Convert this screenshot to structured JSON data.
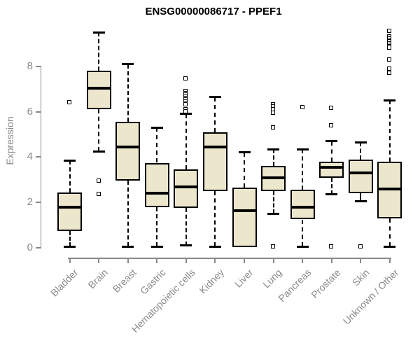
{
  "chart_data": {
    "type": "boxplot",
    "title": "ENSG00000086717 - PPEF1",
    "ylabel": "Expression",
    "xlabel": "",
    "y_ticks": [
      0,
      2,
      4,
      6,
      8
    ],
    "ylim": [
      0,
      9.8
    ],
    "grid": false,
    "legend": "none",
    "categories": [
      "Bladder",
      "Brain",
      "Breast",
      "Gastric",
      "Hematopoietic cells",
      "Kidney",
      "Liver",
      "Lung",
      "Pancreas",
      "Prostate",
      "Skin",
      "Unknown / Other"
    ],
    "series": [
      {
        "name": "Bladder",
        "whisker_low": 0.05,
        "q1": 0.75,
        "median": 1.8,
        "q3": 2.45,
        "whisker_high": 3.85,
        "outliers": [
          6.4
        ]
      },
      {
        "name": "Brain",
        "whisker_low": 4.25,
        "q1": 6.1,
        "median": 7.05,
        "q3": 7.8,
        "whisker_high": 9.5,
        "outliers": [
          2.95,
          2.35
        ]
      },
      {
        "name": "Breast",
        "whisker_low": 0.05,
        "q1": 2.95,
        "median": 4.45,
        "q3": 5.55,
        "whisker_high": 8.1,
        "outliers": []
      },
      {
        "name": "Gastric",
        "whisker_low": 0.05,
        "q1": 1.8,
        "median": 2.4,
        "q3": 3.75,
        "whisker_high": 5.3,
        "outliers": []
      },
      {
        "name": "Hematopoietic cells",
        "whisker_low": 0.1,
        "q1": 1.75,
        "median": 2.7,
        "q3": 3.45,
        "whisker_high": 5.9,
        "outliers": [
          7.45,
          6.9,
          6.82,
          6.75,
          6.68,
          6.6,
          6.52,
          6.45,
          6.38,
          6.3,
          6.1,
          6.0
        ]
      },
      {
        "name": "Kidney",
        "whisker_low": 0.05,
        "q1": 2.5,
        "median": 4.45,
        "q3": 5.1,
        "whisker_high": 6.65,
        "outliers": []
      },
      {
        "name": "Liver",
        "whisker_low": 0.02,
        "q1": 0.02,
        "median": 1.65,
        "q3": 2.65,
        "whisker_high": 4.2,
        "outliers": []
      },
      {
        "name": "Lung",
        "whisker_low": 1.5,
        "q1": 2.5,
        "median": 3.1,
        "q3": 3.6,
        "whisker_high": 4.35,
        "outliers": [
          6.3,
          6.22,
          6.1,
          5.95,
          5.3,
          0.05
        ]
      },
      {
        "name": "Pancreas",
        "whisker_low": 0.05,
        "q1": 1.25,
        "median": 1.8,
        "q3": 2.55,
        "whisker_high": 4.35,
        "outliers": [
          6.2
        ]
      },
      {
        "name": "Prostate",
        "whisker_low": 2.35,
        "q1": 3.1,
        "median": 3.55,
        "q3": 3.8,
        "whisker_high": 4.7,
        "outliers": [
          6.15,
          5.4,
          0.05
        ]
      },
      {
        "name": "Skin",
        "whisker_low": 2.05,
        "q1": 2.4,
        "median": 3.3,
        "q3": 3.9,
        "whisker_high": 4.65,
        "outliers": [
          0.05
        ]
      },
      {
        "name": "Unknown / Other",
        "whisker_low": 0.05,
        "q1": 1.3,
        "median": 2.6,
        "q3": 3.8,
        "whisker_high": 6.5,
        "outliers": [
          9.55,
          9.3,
          9.22,
          9.15,
          9.08,
          9.0,
          8.95,
          8.88,
          8.8,
          8.3,
          7.9,
          7.7
        ]
      }
    ],
    "colors": {
      "box_fill": "#ECE6CD",
      "box_border": "#000000",
      "median": "#000000",
      "whisker": "#000000",
      "axis": "#8a8a8a",
      "title": "#000000",
      "background": "#ffffff"
    }
  }
}
